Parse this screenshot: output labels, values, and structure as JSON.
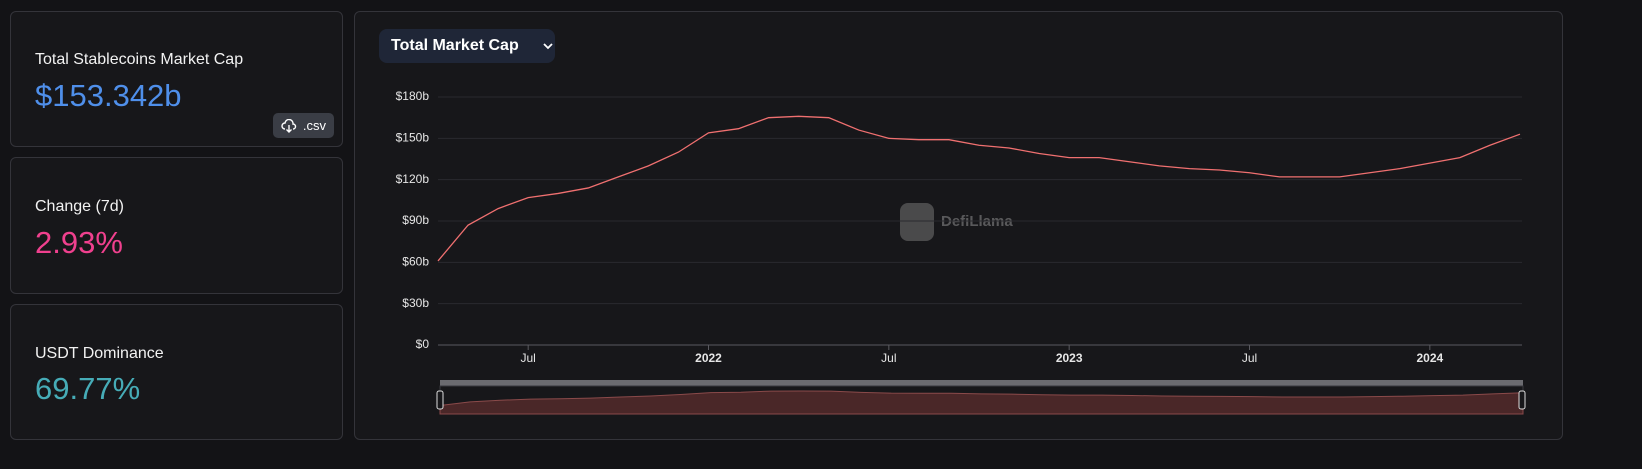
{
  "stats": [
    {
      "label": "Total Stablecoins Market Cap",
      "value": "$153.342b"
    },
    {
      "label": "Change (7d)",
      "value": "2.93%"
    },
    {
      "label": "USDT Dominance",
      "value": "69.77%"
    }
  ],
  "download": ".csv",
  "selector": "Total Market Cap",
  "watermark": "DefiLlama",
  "chart_data": {
    "type": "line",
    "color": "#f07070",
    "x": [
      "2021-04",
      "2021-05",
      "2021-06",
      "2021-07",
      "2021-08",
      "2021-09",
      "2021-10",
      "2021-11",
      "2021-12",
      "2022-01",
      "2022-02",
      "2022-03",
      "2022-04",
      "2022-05",
      "2022-06",
      "2022-07",
      "2022-08",
      "2022-09",
      "2022-10",
      "2022-11",
      "2022-12",
      "2023-01",
      "2023-02",
      "2023-03",
      "2023-04",
      "2023-05",
      "2023-06",
      "2023-07",
      "2023-08",
      "2023-09",
      "2023-10",
      "2023-11",
      "2023-12",
      "2024-01",
      "2024-02",
      "2024-03",
      "2024-04"
    ],
    "values": [
      61,
      87,
      99,
      107,
      110,
      114,
      122,
      130,
      140,
      154,
      157,
      165,
      166,
      165,
      156,
      150,
      149,
      149,
      145,
      143,
      139,
      136,
      136,
      133,
      130,
      128,
      127,
      125,
      122,
      122,
      122,
      125,
      128,
      132,
      136,
      145,
      153
    ],
    "xlim": [
      "2021-04",
      "2024-04"
    ],
    "xticks": [
      {
        "value": "2021-07",
        "label": "Jul"
      },
      {
        "value": "2022-01",
        "label": "2022"
      },
      {
        "value": "2022-07",
        "label": "Jul"
      },
      {
        "value": "2023-01",
        "label": "2023"
      },
      {
        "value": "2023-07",
        "label": "Jul"
      },
      {
        "value": "2024-01",
        "label": "2024"
      }
    ],
    "ylim": [
      0,
      180
    ],
    "yticks": [
      {
        "value": 0,
        "label": "$0"
      },
      {
        "value": 30,
        "label": "$30b"
      },
      {
        "value": 60,
        "label": "$60b"
      },
      {
        "value": 90,
        "label": "$90b"
      },
      {
        "value": 120,
        "label": "$120b"
      },
      {
        "value": 150,
        "label": "$150b"
      },
      {
        "value": 180,
        "label": "$180b"
      }
    ],
    "grid": true
  }
}
